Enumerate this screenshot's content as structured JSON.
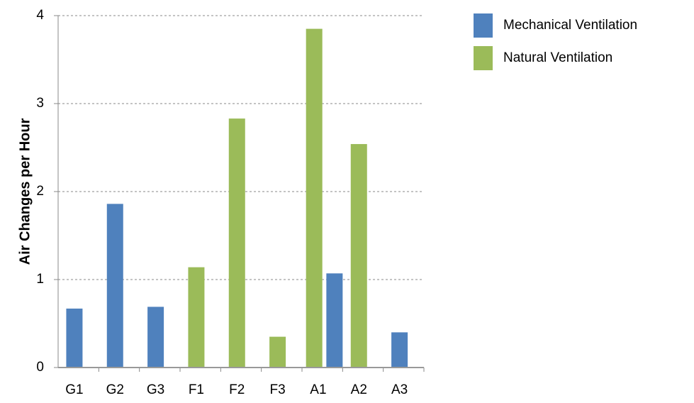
{
  "chart_data": {
    "type": "bar",
    "y_label": "Air Changes per Hour",
    "categories": [
      "G1",
      "G2",
      "G3",
      "F1",
      "F2",
      "F3",
      "A1",
      "A2",
      "A3"
    ],
    "series": [
      {
        "name": "Mechanical Ventilation",
        "color": "#4f81bd",
        "values": [
          0.67,
          1.86,
          0.69,
          null,
          null,
          null,
          1.07,
          null,
          0.4
        ]
      },
      {
        "name": "Natural Ventilation",
        "color": "#9bbb59",
        "values": [
          null,
          null,
          null,
          1.14,
          2.83,
          0.35,
          3.85,
          2.54,
          null
        ]
      }
    ],
    "ylim": [
      0,
      4
    ],
    "yticks": [
      0,
      1,
      2,
      3,
      4
    ],
    "grid": true,
    "legend": "top-right"
  }
}
